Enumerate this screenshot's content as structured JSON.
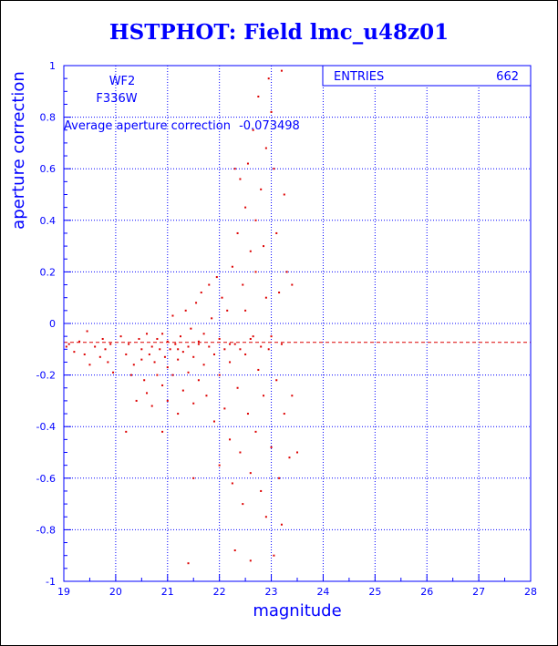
{
  "chart_data": {
    "type": "scatter",
    "title": "HSTPHOT: Field lmc_u48z01",
    "xlabel": "magnitude",
    "ylabel": "aperture correction",
    "xlim": [
      19,
      28
    ],
    "ylim": [
      -1,
      1
    ],
    "xticks": [
      "19",
      "20",
      "21",
      "22",
      "23",
      "24",
      "25",
      "26",
      "27",
      "28"
    ],
    "yticks": [
      "1",
      "0.8",
      "0.6",
      "0.4",
      "0.2",
      "0",
      "-0.2",
      "-0.4",
      "-0.6",
      "-0.8",
      "-1"
    ],
    "grid": true,
    "camera": "WF2",
    "filter": "F336W",
    "average_label": "Average aperture correction",
    "average_value_text": "-0.073498",
    "average": -0.073498,
    "stats": {
      "label": "ENTRIES",
      "value": "662"
    },
    "point_color": "#dd0000",
    "series": [
      {
        "points": [
          [
            19.05,
            -0.09
          ],
          [
            19.1,
            -0.08
          ],
          [
            19.2,
            -0.11
          ],
          [
            19.3,
            -0.07
          ],
          [
            19.4,
            -0.12
          ],
          [
            19.45,
            -0.03
          ],
          [
            19.5,
            -0.16
          ],
          [
            19.6,
            -0.09
          ],
          [
            19.7,
            -0.13
          ],
          [
            19.75,
            -0.06
          ],
          [
            19.8,
            -0.1
          ],
          [
            19.85,
            -0.15
          ],
          [
            19.9,
            -0.08
          ],
          [
            19.95,
            -0.19
          ],
          [
            20.1,
            -0.05
          ],
          [
            20.2,
            -0.12
          ],
          [
            20.25,
            -0.08
          ],
          [
            20.3,
            -0.2
          ],
          [
            20.35,
            -0.16
          ],
          [
            20.4,
            -0.3
          ],
          [
            20.45,
            -0.06
          ],
          [
            20.5,
            -0.1
          ],
          [
            20.5,
            -0.14
          ],
          [
            20.55,
            -0.22
          ],
          [
            20.6,
            -0.04
          ],
          [
            20.6,
            -0.27
          ],
          [
            20.65,
            -0.12
          ],
          [
            20.7,
            -0.09
          ],
          [
            20.7,
            -0.32
          ],
          [
            20.75,
            -0.15
          ],
          [
            20.8,
            -0.06
          ],
          [
            20.8,
            -0.2
          ],
          [
            20.85,
            -0.1
          ],
          [
            20.9,
            -0.04
          ],
          [
            20.9,
            -0.24
          ],
          [
            20.95,
            -0.13
          ],
          [
            21.0,
            -0.07
          ],
          [
            21.0,
            -0.17
          ],
          [
            21.0,
            -0.3
          ],
          [
            21.05,
            -0.1
          ],
          [
            21.1,
            0.03
          ],
          [
            21.1,
            -0.2
          ],
          [
            21.15,
            -0.08
          ],
          [
            21.2,
            -0.14
          ],
          [
            21.2,
            -0.35
          ],
          [
            21.25,
            -0.05
          ],
          [
            21.3,
            -0.11
          ],
          [
            21.3,
            -0.26
          ],
          [
            21.35,
            0.05
          ],
          [
            21.4,
            -0.09
          ],
          [
            21.4,
            -0.19
          ],
          [
            21.45,
            -0.02
          ],
          [
            21.5,
            -0.13
          ],
          [
            21.5,
            -0.31
          ],
          [
            21.55,
            0.08
          ],
          [
            21.6,
            -0.07
          ],
          [
            21.6,
            -0.22
          ],
          [
            21.65,
            0.12
          ],
          [
            21.7,
            -0.04
          ],
          [
            21.7,
            -0.16
          ],
          [
            21.75,
            -0.28
          ],
          [
            21.8,
            0.15
          ],
          [
            21.8,
            -0.09
          ],
          [
            21.85,
            0.02
          ],
          [
            21.9,
            -0.12
          ],
          [
            21.9,
            -0.38
          ],
          [
            21.95,
            0.18
          ],
          [
            22.0,
            -0.06
          ],
          [
            22.0,
            -0.2
          ],
          [
            22.0,
            -0.55
          ],
          [
            22.05,
            0.1
          ],
          [
            22.1,
            -0.1
          ],
          [
            22.1,
            -0.33
          ],
          [
            22.15,
            0.05
          ],
          [
            22.2,
            -0.15
          ],
          [
            22.2,
            -0.45
          ],
          [
            22.25,
            0.22
          ],
          [
            22.25,
            -0.62
          ],
          [
            22.3,
            0.6
          ],
          [
            22.3,
            -0.08
          ],
          [
            22.35,
            0.35
          ],
          [
            22.35,
            -0.25
          ],
          [
            22.4,
            0.56
          ],
          [
            22.4,
            -0.5
          ],
          [
            22.45,
            0.15
          ],
          [
            22.45,
            -0.7
          ],
          [
            22.5,
            0.45
          ],
          [
            22.5,
            -0.12
          ],
          [
            22.55,
            0.62
          ],
          [
            22.55,
            -0.35
          ],
          [
            22.6,
            0.28
          ],
          [
            22.6,
            -0.58
          ],
          [
            22.65,
            0.75
          ],
          [
            22.65,
            -0.05
          ],
          [
            22.7,
            0.4
          ],
          [
            22.7,
            -0.42
          ],
          [
            22.75,
            0.88
          ],
          [
            22.75,
            -0.18
          ],
          [
            22.8,
            0.52
          ],
          [
            22.8,
            -0.65
          ],
          [
            22.85,
            0.3
          ],
          [
            22.85,
            -0.28
          ],
          [
            22.9,
            0.68
          ],
          [
            22.9,
            -0.75
          ],
          [
            22.95,
            0.95
          ],
          [
            22.95,
            -0.1
          ],
          [
            23.0,
            0.82
          ],
          [
            23.0,
            -0.48
          ],
          [
            23.05,
            0.6
          ],
          [
            23.05,
            -0.9
          ],
          [
            23.1,
            0.35
          ],
          [
            23.1,
            -0.22
          ],
          [
            23.15,
            0.12
          ],
          [
            23.15,
            -0.6
          ],
          [
            23.2,
            0.98
          ],
          [
            23.2,
            -0.08
          ],
          [
            23.25,
            0.5
          ],
          [
            23.25,
            -0.35
          ],
          [
            23.3,
            0.2
          ],
          [
            23.35,
            -0.52
          ],
          [
            23.4,
            0.15
          ],
          [
            23.4,
            -0.28
          ],
          [
            23.5,
            -0.5
          ],
          [
            22.3,
            -0.88
          ],
          [
            22.6,
            -0.92
          ],
          [
            21.4,
            -0.93
          ],
          [
            21.5,
            -0.6
          ],
          [
            23.2,
            -0.78
          ],
          [
            20.2,
            -0.42
          ],
          [
            20.9,
            -0.42
          ],
          [
            22.2,
            -0.08
          ],
          [
            22.4,
            -0.1
          ],
          [
            22.6,
            -0.06
          ],
          [
            22.8,
            -0.09
          ],
          [
            23.0,
            -0.05
          ],
          [
            21.2,
            -0.1
          ],
          [
            21.6,
            -0.08
          ],
          [
            22.9,
            0.1
          ],
          [
            22.7,
            0.2
          ],
          [
            22.5,
            0.05
          ]
        ]
      }
    ]
  }
}
